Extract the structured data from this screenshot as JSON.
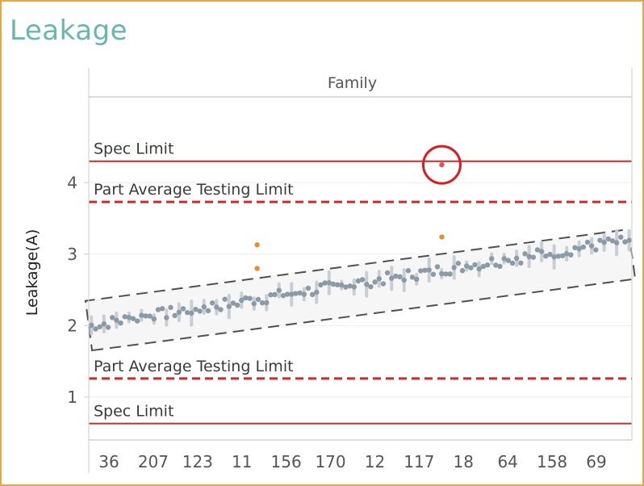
{
  "title": "Leakage",
  "chart_data": {
    "type": "scatter",
    "title": "Leakage",
    "header": "Family",
    "ylabel": "Leakage(A)",
    "xlabel": "",
    "ylim": [
      0.4,
      5.2
    ],
    "yticks": [
      1,
      2,
      3,
      4
    ],
    "x_ticks": [
      "36",
      "207",
      "123",
      "11",
      "156",
      "170",
      "12",
      "117",
      "18",
      "64",
      "158",
      "69"
    ],
    "grid": true,
    "reference_lines": [
      {
        "label": "Spec Limit",
        "value": 4.3,
        "style": "solid",
        "color": "#cc2b2b"
      },
      {
        "label": "Part Average Testing Limit",
        "value": 3.73,
        "style": "dashed",
        "color": "#cc2b2b"
      },
      {
        "label": "Part Average Testing Limit",
        "value": 1.26,
        "style": "dashed",
        "color": "#cc2b2b"
      },
      {
        "label": "Spec Limit",
        "value": 0.63,
        "style": "solid",
        "color": "#cc2b2b"
      }
    ],
    "band": {
      "start": [
        0,
        2.0
      ],
      "end": [
        1,
        3.0
      ],
      "half_width": 0.35
    },
    "trend": {
      "start": 2.0,
      "end": 3.2,
      "noise": 0.08,
      "count": 130
    },
    "outliers": [
      {
        "x": 0.31,
        "y": 3.13,
        "color": "#e8902a"
      },
      {
        "x": 0.31,
        "y": 2.8,
        "color": "#e8902a"
      },
      {
        "x": 0.65,
        "y": 3.24,
        "color": "#e8902a"
      },
      {
        "x": 0.65,
        "y": 4.25,
        "color": "#e05555",
        "circled": true
      }
    ],
    "colors": {
      "points": "#8a9aa6",
      "outlier": "#e8902a",
      "limit": "#cc2b2b",
      "circle": "#d42020",
      "title": "#68b6ad"
    }
  }
}
